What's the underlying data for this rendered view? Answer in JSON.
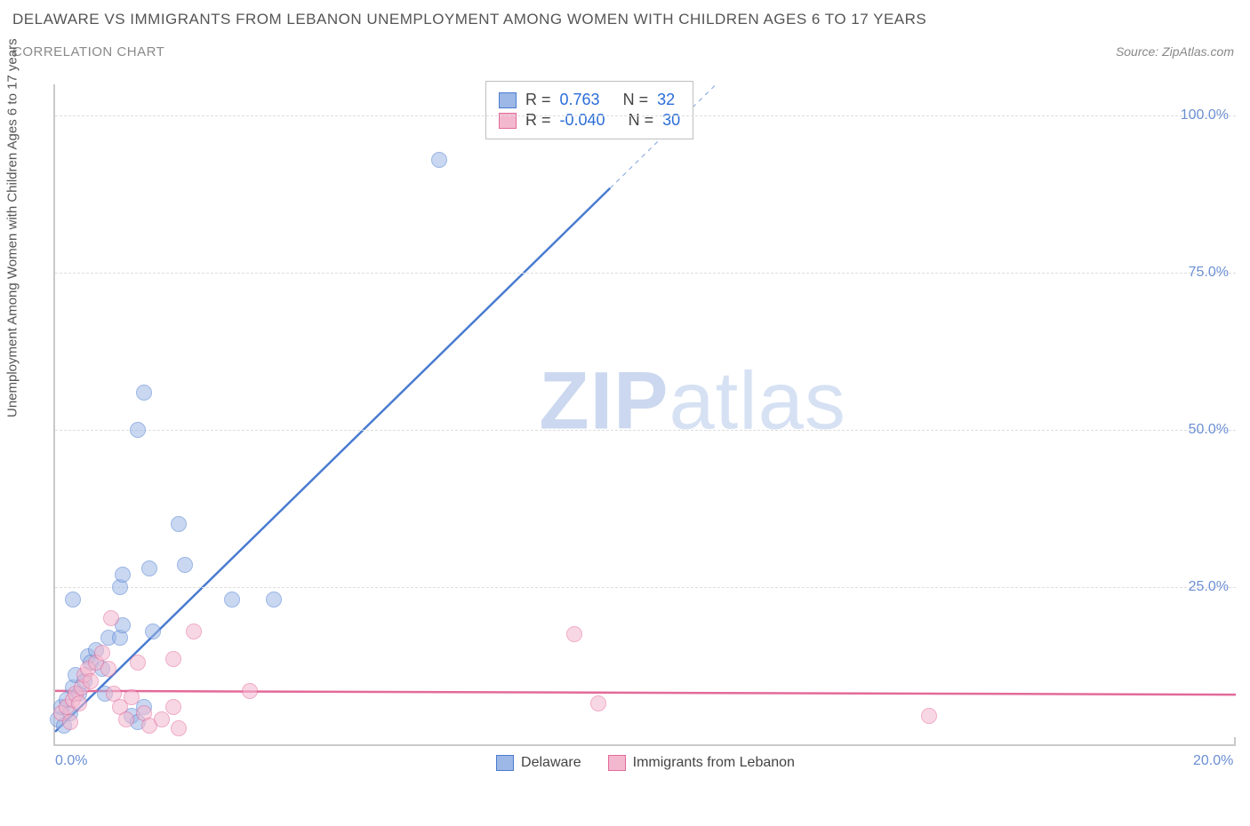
{
  "header": {
    "title": "DELAWARE VS IMMIGRANTS FROM LEBANON UNEMPLOYMENT AMONG WOMEN WITH CHILDREN AGES 6 TO 17 YEARS",
    "subtitle": "CORRELATION CHART",
    "source_prefix": "Source: ",
    "source_name": "ZipAtlas.com",
    "title_color": "#555555",
    "subtitle_color": "#8a8a8a"
  },
  "watermark": {
    "part1": "ZIP",
    "part2": "atlas"
  },
  "chart": {
    "type": "scatter",
    "background_color": "#ffffff",
    "axis_color": "#c9c9c9",
    "grid_color": "#dddddd",
    "y_axis_label": "Unemployment Among Women with Children Ages 6 to 17 years",
    "y_label_fontsize": 15,
    "xlim": [
      0,
      20
    ],
    "ylim": [
      0,
      105
    ],
    "x_ticks": [
      {
        "value": 0,
        "label": "0.0%"
      },
      {
        "value": 20,
        "label": "20.0%"
      }
    ],
    "y_ticks": [
      {
        "value": 25,
        "label": "25.0%"
      },
      {
        "value": 50,
        "label": "50.0%"
      },
      {
        "value": 75,
        "label": "75.0%"
      },
      {
        "value": 100,
        "label": "100.0%"
      }
    ],
    "tick_label_color": "#6b8fd4",
    "tick_fontsize": 16,
    "marker_radius": 9,
    "marker_opacity": 0.55,
    "series": [
      {
        "name": "Delaware",
        "fill_color": "#9db8e6",
        "stroke_color": "#4a7bd0",
        "regression": {
          "slope": 9.2,
          "intercept": 2.0,
          "x_solid_end": 9.4,
          "line_width": 2.5
        },
        "stats": {
          "R": "0.763",
          "N": "32"
        },
        "points": [
          {
            "x": 0.05,
            "y": 4.0
          },
          {
            "x": 0.1,
            "y": 6.0
          },
          {
            "x": 0.15,
            "y": 3.0
          },
          {
            "x": 0.2,
            "y": 7.0
          },
          {
            "x": 0.25,
            "y": 5.0
          },
          {
            "x": 0.3,
            "y": 9.0
          },
          {
            "x": 0.35,
            "y": 11.0
          },
          {
            "x": 0.4,
            "y": 8.0
          },
          {
            "x": 0.5,
            "y": 10.0
          },
          {
            "x": 0.55,
            "y": 14.0
          },
          {
            "x": 0.6,
            "y": 13.0
          },
          {
            "x": 0.7,
            "y": 15.0
          },
          {
            "x": 0.8,
            "y": 12.0
          },
          {
            "x": 0.9,
            "y": 17.0
          },
          {
            "x": 0.3,
            "y": 23.0
          },
          {
            "x": 1.1,
            "y": 17.0
          },
          {
            "x": 1.15,
            "y": 19.0
          },
          {
            "x": 1.3,
            "y": 4.5
          },
          {
            "x": 1.4,
            "y": 3.5
          },
          {
            "x": 1.5,
            "y": 6.0
          },
          {
            "x": 1.6,
            "y": 28.0
          },
          {
            "x": 1.65,
            "y": 18.0
          },
          {
            "x": 2.2,
            "y": 28.5
          },
          {
            "x": 1.1,
            "y": 25.0
          },
          {
            "x": 1.15,
            "y": 27.0
          },
          {
            "x": 2.1,
            "y": 35.0
          },
          {
            "x": 1.4,
            "y": 50.0
          },
          {
            "x": 1.5,
            "y": 56.0
          },
          {
            "x": 3.0,
            "y": 23.0
          },
          {
            "x": 3.7,
            "y": 23.0
          },
          {
            "x": 6.5,
            "y": 93.0
          },
          {
            "x": 0.85,
            "y": 8.0
          }
        ]
      },
      {
        "name": "Immigrants from Lebanon",
        "fill_color": "#f4b8ce",
        "stroke_color": "#e36a9a",
        "regression": {
          "slope": -0.03,
          "intercept": 8.5,
          "x_solid_end": 20,
          "line_width": 2.5
        },
        "stats": {
          "R": "-0.040",
          "N": "30"
        },
        "points": [
          {
            "x": 0.1,
            "y": 5.0
          },
          {
            "x": 0.2,
            "y": 6.0
          },
          {
            "x": 0.25,
            "y": 3.5
          },
          {
            "x": 0.3,
            "y": 7.0
          },
          {
            "x": 0.35,
            "y": 8.0
          },
          {
            "x": 0.4,
            "y": 6.5
          },
          {
            "x": 0.45,
            "y": 9.0
          },
          {
            "x": 0.5,
            "y": 11.0
          },
          {
            "x": 0.55,
            "y": 12.0
          },
          {
            "x": 0.6,
            "y": 10.0
          },
          {
            "x": 0.7,
            "y": 13.0
          },
          {
            "x": 0.8,
            "y": 14.5
          },
          {
            "x": 0.9,
            "y": 12.0
          },
          {
            "x": 1.0,
            "y": 8.0
          },
          {
            "x": 1.1,
            "y": 6.0
          },
          {
            "x": 1.2,
            "y": 4.0
          },
          {
            "x": 1.3,
            "y": 7.5
          },
          {
            "x": 1.4,
            "y": 13.0
          },
          {
            "x": 1.5,
            "y": 5.0
          },
          {
            "x": 1.6,
            "y": 3.0
          },
          {
            "x": 1.8,
            "y": 4.0
          },
          {
            "x": 2.0,
            "y": 13.5
          },
          {
            "x": 2.1,
            "y": 2.5
          },
          {
            "x": 2.35,
            "y": 18.0
          },
          {
            "x": 2.0,
            "y": 6.0
          },
          {
            "x": 3.3,
            "y": 8.5
          },
          {
            "x": 8.8,
            "y": 17.5
          },
          {
            "x": 9.2,
            "y": 6.5
          },
          {
            "x": 14.8,
            "y": 4.5
          },
          {
            "x": 0.95,
            "y": 20.0
          }
        ]
      }
    ],
    "stats_box": {
      "r_label": "R =",
      "n_label": "N ="
    }
  }
}
